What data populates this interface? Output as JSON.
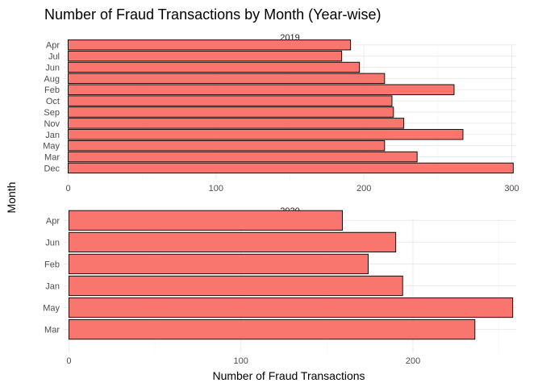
{
  "chart_data": {
    "type": "bar",
    "orientation": "horizontal",
    "title": "Number of Fraud Transactions by Month (Year-wise)",
    "xlabel": "Number of Fraud Transactions",
    "ylabel": "Month",
    "bar_color": "#F8766D",
    "bar_outline": "#000000",
    "grid": true,
    "legend": "none",
    "facets": [
      {
        "label": "2019",
        "xlim": [
          -3,
          303
        ],
        "xticks": [
          0,
          100,
          200,
          300
        ],
        "categories": [
          "Apr",
          "Jul",
          "Jun",
          "Aug",
          "Feb",
          "Oct",
          "Sep",
          "Nov",
          "Jan",
          "May",
          "Mar",
          "Dec"
        ],
        "values": [
          191,
          185,
          197,
          214,
          261,
          219,
          220,
          227,
          267,
          214,
          236,
          301
        ]
      },
      {
        "label": "2020",
        "xlim": [
          -3,
          260
        ],
        "xticks": [
          0,
          100,
          200
        ],
        "categories": [
          "Apr",
          "Jun",
          "Feb",
          "Jan",
          "May",
          "Mar"
        ],
        "values": [
          159,
          190,
          174,
          194,
          258,
          236
        ]
      }
    ]
  }
}
